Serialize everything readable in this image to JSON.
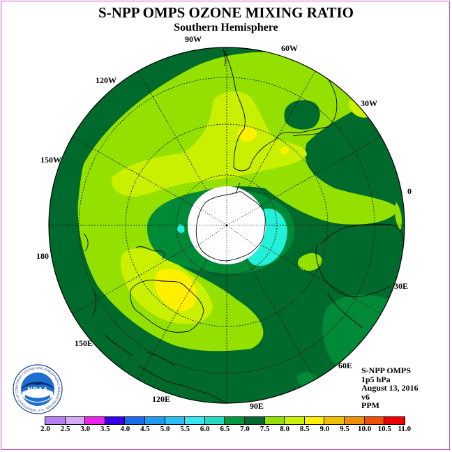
{
  "header": {
    "title": "S-NPP OMPS OZONE MIXING RATIO",
    "subtitle": "Southern Hemisphere"
  },
  "map": {
    "projection": "south polar stereographic",
    "longitude_labels": [
      "90W",
      "60W",
      "120W",
      "30W",
      "150W",
      "0",
      "180",
      "30E",
      "150E",
      "60E",
      "120E",
      "90E"
    ]
  },
  "info_block": {
    "instrument": "S-NPP OMPS",
    "level": "1p5 hPa",
    "date": "August 13, 2016",
    "version": "v6",
    "units": "PPM"
  },
  "logo": {
    "text": "NOAA",
    "ring_text": "NATIONAL OCEANIC AND ATMOSPHERIC ADMINISTRATION · U.S. DEPARTMENT OF COMMERCE"
  },
  "colorbar": {
    "ticks": [
      "2.0",
      "2.5",
      "3.0",
      "3.5",
      "4.0",
      "4.5",
      "5.0",
      "5.5",
      "6.0",
      "6.5",
      "7.0",
      "7.5",
      "8.0",
      "8.5",
      "9.0",
      "9.5",
      "10.0",
      "10.5",
      "11.0"
    ],
    "colors": [
      "#b67ef0",
      "#d6a8f5",
      "#ee22ee",
      "#3300ee",
      "#1a6af0",
      "#1e9cf0",
      "#28c0f6",
      "#33e8f0",
      "#22ddc4",
      "#009a3c",
      "#006a2c",
      "#94e000",
      "#c8f000",
      "#fff000",
      "#f0c000",
      "#f09000",
      "#f05000",
      "#ee0000",
      "#8a5a3c"
    ]
  },
  "field_colors": {
    "dark_green": "#006a2c",
    "medium_green": "#008a38",
    "light_green": "#94e000",
    "yellow_green": "#c8f000",
    "yellow": "#fff000",
    "cyan": "#22f0d8"
  }
}
